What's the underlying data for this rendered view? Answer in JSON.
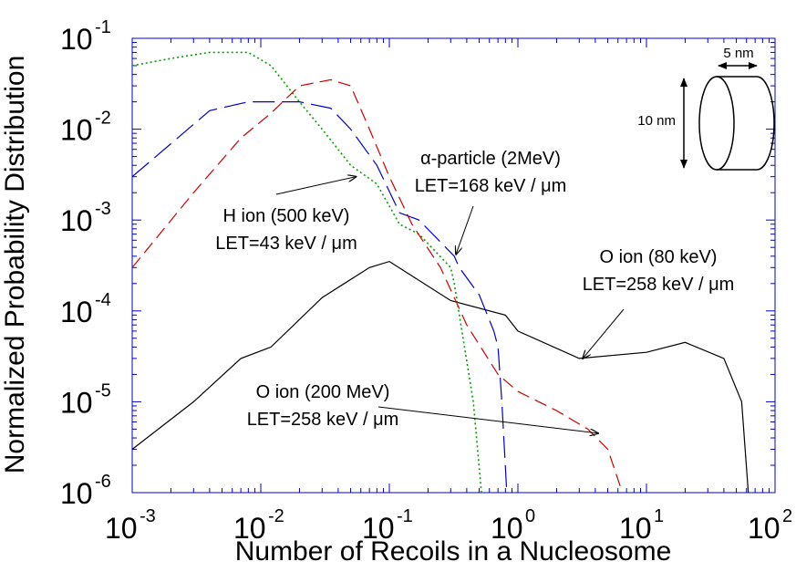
{
  "chart_data": {
    "type": "line",
    "title": "",
    "xlabel": "Number of Recoils in a Nucleosome",
    "ylabel": "Normalized Probability Distribution",
    "x_scale": "log",
    "y_scale": "log",
    "xlim": [
      0.001,
      100
    ],
    "ylim": [
      1e-06,
      0.1
    ],
    "grid": false,
    "x_ticks": [
      {
        "base": "10",
        "exp": "-3",
        "value": 0.001
      },
      {
        "base": "10",
        "exp": "-2",
        "value": 0.01
      },
      {
        "base": "10",
        "exp": "-1",
        "value": 0.1
      },
      {
        "base": "10",
        "exp": "0",
        "value": 1
      },
      {
        "base": "10",
        "exp": "1",
        "value": 10
      },
      {
        "base": "10",
        "exp": "2",
        "value": 100
      }
    ],
    "y_ticks": [
      {
        "base": "10",
        "exp": "-1",
        "value": 0.1
      },
      {
        "base": "10",
        "exp": "-2",
        "value": 0.01
      },
      {
        "base": "10",
        "exp": "-3",
        "value": 0.001
      },
      {
        "base": "10",
        "exp": "-4",
        "value": 0.0001
      },
      {
        "base": "10",
        "exp": "-5",
        "value": 1e-05
      },
      {
        "base": "10",
        "exp": "-6",
        "value": 1e-06
      }
    ],
    "series": [
      {
        "color": "#000000",
        "dash": "solid",
        "x": [
          0.001,
          0.003,
          0.007,
          0.012,
          0.03,
          0.07,
          0.1,
          0.3,
          0.8,
          1.0,
          3.0,
          10,
          20,
          40,
          55,
          62
        ],
        "y": [
          3e-06,
          1e-05,
          3e-05,
          4e-05,
          0.00014,
          0.0003,
          0.00035,
          0.00013,
          9e-05,
          6e-05,
          3e-05,
          3.5e-05,
          4.5e-05,
          3e-05,
          1e-05,
          1e-06
        ]
      },
      {
        "color": "#00a000",
        "dash": "dotted",
        "x": [
          0.001,
          0.002,
          0.004,
          0.008,
          0.012,
          0.02,
          0.03,
          0.05,
          0.08,
          0.12,
          0.17,
          0.3,
          0.32,
          0.45,
          0.52
        ],
        "y": [
          0.05,
          0.06,
          0.07,
          0.07,
          0.05,
          0.02,
          0.01,
          0.004,
          0.0025,
          0.0009,
          0.0007,
          0.0003,
          0.0002,
          1e-05,
          1e-06
        ]
      },
      {
        "color": "#0000cc",
        "dash": "long-dash",
        "x": [
          0.001,
          0.004,
          0.008,
          0.012,
          0.02,
          0.035,
          0.05,
          0.08,
          0.12,
          0.17,
          0.32,
          0.35,
          0.5,
          0.65,
          0.7,
          0.75,
          0.82
        ],
        "y": [
          0.003,
          0.016,
          0.02,
          0.02,
          0.02,
          0.017,
          0.01,
          0.004,
          0.0012,
          0.001,
          0.0004,
          0.0003,
          0.00015,
          6e-05,
          4e-05,
          1e-05,
          1e-06
        ]
      },
      {
        "color": "#cc0000",
        "dash": "dash",
        "x": [
          0.001,
          0.003,
          0.007,
          0.012,
          0.02,
          0.035,
          0.05,
          0.07,
          0.1,
          0.15,
          0.25,
          0.4,
          0.7,
          1.0,
          2.0,
          3.5,
          5.0,
          6.5
        ],
        "y": [
          0.0003,
          0.002,
          0.008,
          0.015,
          0.03,
          0.035,
          0.03,
          0.01,
          0.003,
          0.0009,
          0.0003,
          7e-05,
          2e-05,
          1.3e-05,
          8e-06,
          5e-06,
          3e-06,
          1e-06
        ]
      }
    ],
    "annotations": [
      {
        "lines": [
          "H ion (500 keV)",
          "LET=43 keV / μm"
        ],
        "arrow_tip": [
          0.055,
          0.003
        ]
      },
      {
        "lines": [
          "α-particle (2MeV)",
          "LET=168 keV / μm"
        ],
        "arrow_tip": [
          0.33,
          0.00042
        ]
      },
      {
        "lines": [
          "O ion (80 keV)",
          "LET=258 keV / μm"
        ],
        "arrow_tip": [
          3.2,
          3e-05
        ]
      },
      {
        "lines": [
          "O ion (200 MeV)",
          "LET=258 keV / μm"
        ],
        "arrow_tip": [
          4.2,
          4.5e-06
        ]
      }
    ],
    "inset": {
      "width_label": "5 nm",
      "height_label": "10 nm"
    }
  }
}
